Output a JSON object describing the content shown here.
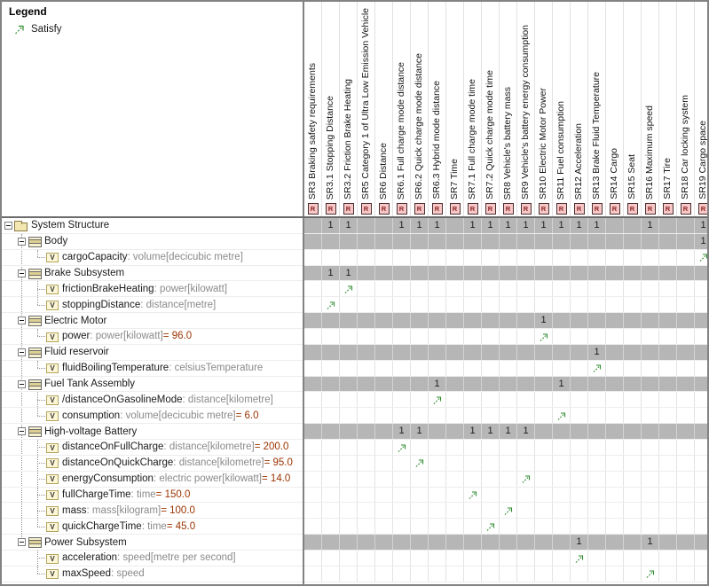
{
  "legend": {
    "title": "Legend",
    "items": [
      {
        "label": "Satisfy",
        "icon": "satisfy-arrow-icon"
      }
    ]
  },
  "colors": {
    "satisfy_green": "#2e8b2e",
    "shaded_row": "#b6b6b6",
    "requirement_icon_bg": "#f8c8c8",
    "value_text": "#9a3300",
    "type_text": "#8a8a8a"
  },
  "matrix": {
    "cell_mark": "1",
    "icon_labels": {
      "requirement": "R",
      "value_property": "V"
    },
    "columns": [
      {
        "label": "SR3 Braking safety requirements"
      },
      {
        "label": "SR3.1 Stopping Distance"
      },
      {
        "label": "SR3.2 Friction Brake Heating"
      },
      {
        "label": "SR5 Category 1 of Ultra Low Emission Vehicle"
      },
      {
        "label": "SR6 Distance"
      },
      {
        "label": "SR6.1 Full charge mode distance"
      },
      {
        "label": "SR6.2 Quick charge mode distance"
      },
      {
        "label": "SR6.3 Hybrid mode distance"
      },
      {
        "label": "SR7 Time"
      },
      {
        "label": "SR7.1 Full charge mode time"
      },
      {
        "label": "SR7.2 Quick charge mode time"
      },
      {
        "label": "SR8 Vehicle's battery mass"
      },
      {
        "label": "SR9 Vehicle's battery energy consumption"
      },
      {
        "label": "SR10 Electric Motor Power"
      },
      {
        "label": "SR11 Fuel consumption"
      },
      {
        "label": "SR12 Acceleration"
      },
      {
        "label": "SR13 Brake Fluid Temperature"
      },
      {
        "label": "SR14 Cargo"
      },
      {
        "label": "SR15 Seat"
      },
      {
        "label": "SR16 Maximum speed"
      },
      {
        "label": "SR17 Tire"
      },
      {
        "label": "SR18 Car locking system"
      },
      {
        "label": "SR19 Cargo space"
      }
    ],
    "rows": [
      {
        "kind": "group",
        "level": 0,
        "icon": "package",
        "name": "System Structure",
        "ones": [
          1,
          2,
          5,
          6,
          7,
          9,
          10,
          11,
          12,
          13,
          14,
          15,
          16,
          19,
          22
        ]
      },
      {
        "kind": "group",
        "level": 1,
        "icon": "block",
        "name": "Body",
        "ones": [
          22
        ]
      },
      {
        "kind": "value",
        "name": "cargoCapacity",
        "type": "volume[decicubic metre]",
        "arrow": 22
      },
      {
        "kind": "group",
        "level": 1,
        "icon": "block",
        "name": "Brake Subsystem",
        "ones": [
          1,
          2
        ]
      },
      {
        "kind": "value",
        "name": "frictionBrakeHeating",
        "type": "power[kilowatt]",
        "arrow": 2
      },
      {
        "kind": "value",
        "name": "stoppingDistance",
        "type": "distance[metre]",
        "arrow": 1
      },
      {
        "kind": "group",
        "level": 1,
        "icon": "block",
        "name": "Electric Motor",
        "ones": [
          13
        ]
      },
      {
        "kind": "value",
        "name": "power",
        "type": "power[kilowatt]",
        "value": "96.0",
        "arrow": 13
      },
      {
        "kind": "group",
        "level": 1,
        "icon": "block",
        "name": "Fluid reservoir",
        "ones": [
          16
        ]
      },
      {
        "kind": "value",
        "name": "fluidBoilingTemperature",
        "type": "celsiusTemperature",
        "arrow": 16
      },
      {
        "kind": "group",
        "level": 1,
        "icon": "block",
        "name": "Fuel Tank Assembly",
        "ones": [
          7,
          14
        ]
      },
      {
        "kind": "value",
        "name": "/distanceOnGasolineMode",
        "type": "distance[kilometre]",
        "arrow": 7
      },
      {
        "kind": "value",
        "name": "consumption",
        "type": "volume[decicubic metre]",
        "value": "6.0",
        "arrow": 14
      },
      {
        "kind": "group",
        "level": 1,
        "icon": "block",
        "name": "High-voltage Battery",
        "ones": [
          5,
          6,
          9,
          10,
          11,
          12
        ]
      },
      {
        "kind": "value",
        "name": "distanceOnFullCharge",
        "type": "distance[kilometre]",
        "value": "200.0",
        "arrow": 5
      },
      {
        "kind": "value",
        "name": "distanceOnQuickCharge",
        "type": "distance[kilometre]",
        "value": "95.0",
        "arrow": 6
      },
      {
        "kind": "value",
        "name": "energyConsumption",
        "type": "electric power[kilowatt]",
        "value": "14.0",
        "arrow": 12
      },
      {
        "kind": "value",
        "name": "fullChargeTime",
        "type": "time",
        "value": "150.0",
        "arrow": 9
      },
      {
        "kind": "value",
        "name": "mass",
        "type": "mass[kilogram]",
        "value": "100.0",
        "arrow": 11
      },
      {
        "kind": "value",
        "name": "quickChargeTime",
        "type": "time",
        "value": "45.0",
        "arrow": 10
      },
      {
        "kind": "group",
        "level": 1,
        "icon": "block",
        "name": "Power Subsystem",
        "ones": [
          15,
          19
        ]
      },
      {
        "kind": "value",
        "name": "acceleration",
        "type": "speed[metre per second]",
        "arrow": 15
      },
      {
        "kind": "value",
        "name": "maxSpeed",
        "type": "speed",
        "arrow": 19
      }
    ]
  }
}
